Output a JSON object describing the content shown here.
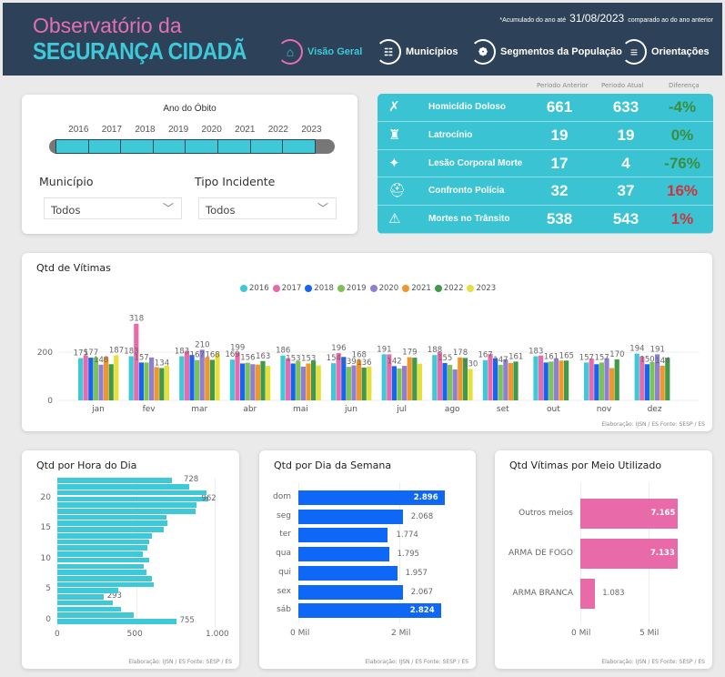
{
  "header": {
    "logo_line1": "Observatório da",
    "logo_line2": "SEGURANÇA CIDADÃ",
    "note_prefix": "*Acumulado do ano até",
    "date": "31/08/2023",
    "note_suffix": "comparado ao do ano anterior",
    "nav": [
      {
        "label": "Visão Geral",
        "icon": "home-icon",
        "active": true
      },
      {
        "label": "Municípios",
        "icon": "list-icon",
        "active": false
      },
      {
        "label": "Segmentos da População",
        "icon": "people-icon",
        "active": false
      },
      {
        "label": "Orientações",
        "icon": "menu-icon",
        "active": false
      }
    ]
  },
  "filters": {
    "slider_title": "Ano do Óbito",
    "years": [
      "2016",
      "2017",
      "2018",
      "2019",
      "2020",
      "2021",
      "2022",
      "2023"
    ],
    "municipio_label": "Município",
    "municipio_value": "Todos",
    "tipo_label": "Tipo Incidente",
    "tipo_value": "Todos"
  },
  "kpi": {
    "headers": [
      "Periodo Anterior",
      "Periodo Atual",
      "Diferença"
    ],
    "rows": [
      {
        "label": "Homicídio Doloso",
        "icon": "homicide-icon",
        "anterior": "661",
        "atual": "633",
        "diff": "-4%",
        "diff_color": "#3a8f3e"
      },
      {
        "label": "Latrocínio",
        "icon": "robbery-icon",
        "anterior": "19",
        "atual": "19",
        "diff": "0%",
        "diff_color": "#3a8f3e"
      },
      {
        "label": "Lesão Corporal Morte",
        "icon": "assault-icon",
        "anterior": "17",
        "atual": "4",
        "diff": "-76%",
        "diff_color": "#3a8f3e"
      },
      {
        "label": "Confronto Polícia",
        "icon": "police-cap-icon",
        "anterior": "32",
        "atual": "37",
        "diff": "16%",
        "diff_color": "#d0343a"
      },
      {
        "label": "Mortes no Trânsito",
        "icon": "car-crash-icon",
        "anterior": "538",
        "atual": "543",
        "diff": "1%",
        "diff_color": "#d0343a"
      }
    ]
  },
  "credit": "Elaboração: IJSN / ES Fonte: SESP / ES",
  "chart_data": [
    {
      "type": "bar",
      "title": "Qtd de Vítimas",
      "categories": [
        "jan",
        "fev",
        "mar",
        "abr",
        "mai",
        "jun",
        "jul",
        "ago",
        "set",
        "out",
        "nov",
        "dez"
      ],
      "ylim": [
        0,
        330
      ],
      "yticks": [
        0,
        200
      ],
      "legend": "top-center",
      "series": [
        {
          "name": "2016",
          "color": "#3ec8d8",
          "values": [
            175,
            183,
            183,
            169,
            186,
            154,
            191,
            188,
            167,
            183,
            157,
            194
          ]
        },
        {
          "name": "2017",
          "color": "#e96aa9",
          "values": [
            186,
            318,
            205,
            199,
            175,
            196,
            191,
            200,
            192,
            186,
            173,
            182
          ]
        },
        {
          "name": "2018",
          "color": "#1466f0",
          "values": [
            177,
            157,
            188,
            153,
            153,
            180,
            142,
            155,
            175,
            157,
            150,
            150
          ]
        },
        {
          "name": "2019",
          "color": "#7cc255",
          "values": [
            178,
            157,
            167,
            156,
            163,
            139,
            132,
            147,
            147,
            161,
            157,
            159
          ]
        },
        {
          "name": "2020",
          "color": "#8f7fd3",
          "values": [
            148,
            178,
            210,
            150,
            140,
            145,
            143,
            128,
            170,
            173,
            175,
            191
          ]
        },
        {
          "name": "2021",
          "color": "#f0962a",
          "values": [
            180,
            138,
            178,
            148,
            153,
            168,
            179,
            178,
            155,
            165,
            134,
            144
          ]
        },
        {
          "name": "2022",
          "color": "#3f9a4a",
          "values": [
            150,
            134,
            168,
            163,
            165,
            136,
            177,
            176,
            161,
            165,
            170,
            177
          ]
        },
        {
          "name": "2023",
          "color": "#e6e03c",
          "values": [
            187,
            144,
            195,
            143,
            145,
            140,
            152,
            130,
            null,
            null,
            null,
            null
          ]
        }
      ],
      "data_labels_series": [
        [
          0,
          2,
          4,
          7
        ],
        [
          0,
          1,
          2,
          6
        ],
        [
          0,
          3,
          4,
          6
        ],
        [
          0,
          1,
          3,
          6
        ],
        [
          0,
          2,
          5
        ],
        [
          0,
          1,
          3,
          5,
          6
        ],
        [
          0,
          2,
          5
        ],
        [
          0,
          2,
          5,
          7
        ],
        [
          0,
          3,
          6
        ],
        [
          0,
          3,
          6
        ],
        [
          0,
          3,
          6
        ],
        [
          0,
          2,
          4,
          5
        ]
      ]
    },
    {
      "type": "bar",
      "orientation": "horizontal",
      "title": "Qtd por Hora do Dia",
      "color": "#3ec8d8",
      "categories": [
        0,
        1,
        2,
        3,
        4,
        5,
        6,
        7,
        8,
        9,
        10,
        11,
        12,
        13,
        14,
        15,
        16,
        17,
        18,
        19,
        20,
        21,
        22,
        23
      ],
      "values": [
        755,
        488,
        402,
        353,
        293,
        388,
        610,
        604,
        568,
        548,
        583,
        546,
        575,
        581,
        604,
        676,
        697,
        691,
        878,
        882,
        962,
        950,
        836,
        728
      ],
      "labeled": [
        0,
        4,
        20,
        23
      ],
      "xlim": [
        0,
        1000
      ],
      "xticks": [
        "0",
        "500",
        "1.000"
      ],
      "yticks": [
        0,
        5,
        10,
        15,
        20
      ]
    },
    {
      "type": "bar",
      "orientation": "horizontal",
      "title": "Qtd por Dia da Semana",
      "color": "#0f67f5",
      "categories": [
        "dom",
        "seg",
        "ter",
        "qua",
        "qui",
        "sex",
        "sáb"
      ],
      "values": [
        2896,
        2068,
        1774,
        1795,
        1957,
        2067,
        2824
      ],
      "value_labels": [
        "2.896",
        "2.068",
        "1.774",
        "1.795",
        "1.957",
        "2.067",
        "2.824"
      ],
      "xticks": [
        "0 Mil",
        "2 Mil"
      ]
    },
    {
      "type": "bar",
      "orientation": "horizontal",
      "title": "Qtd Vítimas por Meio Utilizado",
      "color": "#e96aa9",
      "categories": [
        "Outros meios",
        "ARMA DE FOGO",
        "ARMA BRANCA"
      ],
      "values": [
        7165,
        7133,
        1083
      ],
      "value_labels": [
        "7.165",
        "7.133",
        "1.083"
      ],
      "xticks": [
        "0 Mil",
        "5 Mil"
      ]
    }
  ]
}
